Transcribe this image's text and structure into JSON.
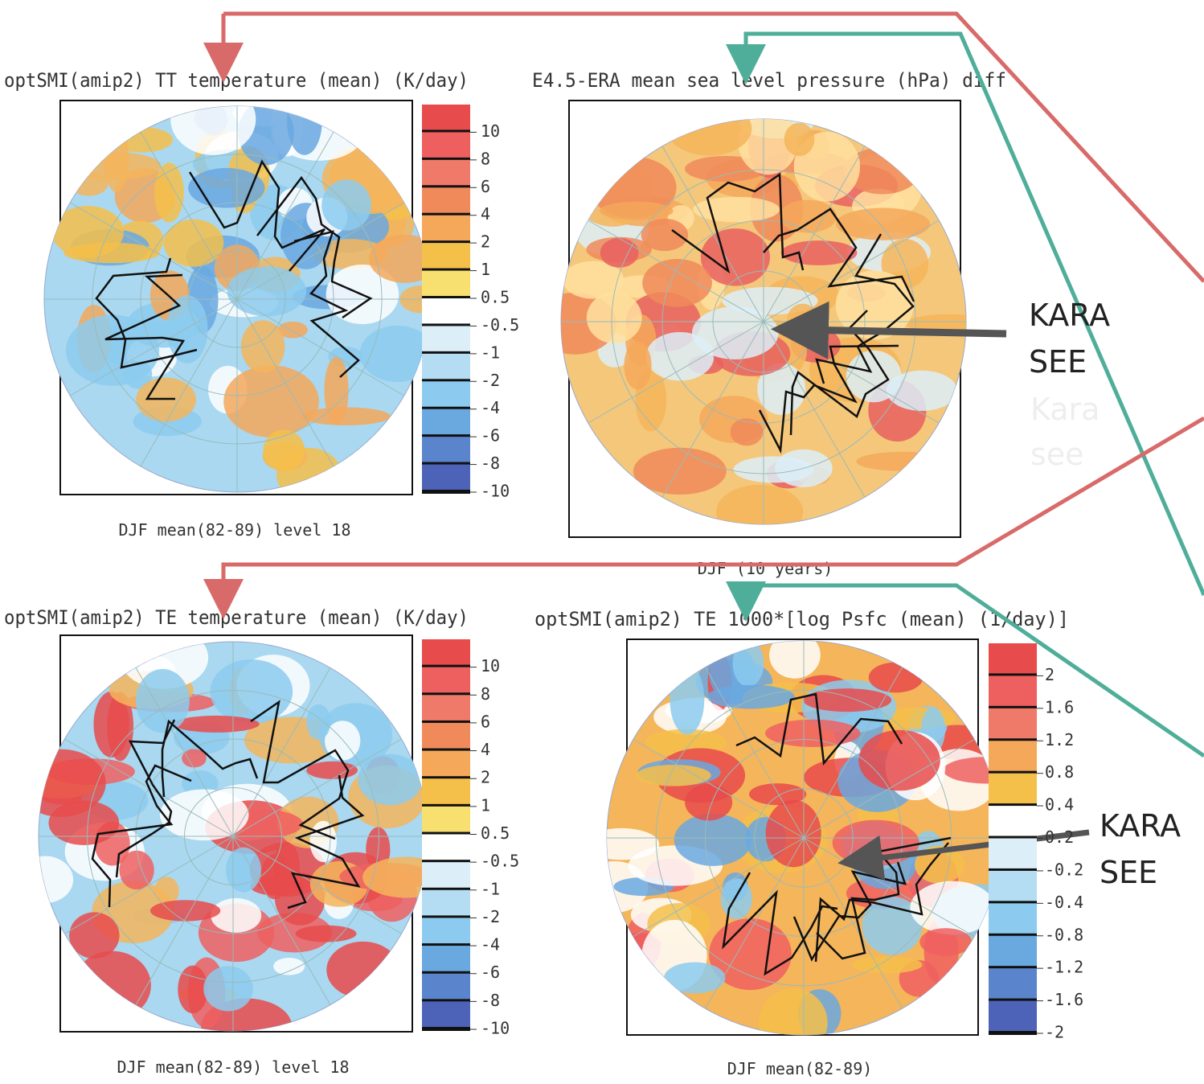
{
  "panels": [
    {
      "title": "optSMI(amip2) TT temperature (mean) (K/day)",
      "caption": "DJF mean(82-89) level 18",
      "colorbar_labels": [
        "10",
        "8",
        "6",
        "4",
        "2",
        "1",
        "0.5",
        "-0.5",
        "-1",
        "-2",
        "-4",
        "-6",
        "-8",
        "-10"
      ],
      "colorbar_colors": [
        "#e84b4b",
        "#ee6060",
        "#f07a6a",
        "#f08a5a",
        "#f5a85a",
        "#f5c04a",
        "#f8e070",
        "#ffffff",
        "#dceef8",
        "#b4dcf2",
        "#8ccbef",
        "#6aa8e0",
        "#5a84cc",
        "#4d63b8"
      ]
    },
    {
      "title": "E4.5-ERA mean sea level pressure (hPa) diff",
      "caption": "DJF (10 years)"
    },
    {
      "title": "optSMI(amip2) TE temperature (mean) (K/day)",
      "caption": "DJF mean(82-89) level 18",
      "colorbar_labels": [
        "10",
        "8",
        "6",
        "4",
        "2",
        "1",
        "0.5",
        "-0.5",
        "-1",
        "-2",
        "-4",
        "-6",
        "-8",
        "-10"
      ],
      "colorbar_colors": [
        "#e84b4b",
        "#ee6060",
        "#f07a6a",
        "#f08a5a",
        "#f5a85a",
        "#f5c04a",
        "#f8e070",
        "#ffffff",
        "#dceef8",
        "#b4dcf2",
        "#8ccbef",
        "#6aa8e0",
        "#5a84cc",
        "#4d63b8"
      ]
    },
    {
      "title": "optSMI(amip2) TE 1000*[log Psfc (mean) (1/day)]",
      "caption": "DJF mean(82-89)",
      "colorbar_labels": [
        "2",
        "1.6",
        "1.2",
        "0.8",
        "0.4",
        "0.2",
        "-0.2",
        "-0.4",
        "-0.8",
        "-1.2",
        "-1.6",
        "-2"
      ],
      "colorbar_colors": [
        "#e84b4b",
        "#ee6060",
        "#f07a6a",
        "#f5a85a",
        "#f5c04a",
        "#ffffff",
        "#dceef8",
        "#b4dcf2",
        "#8ccbef",
        "#6aa8e0",
        "#5a84cc",
        "#4d63b8"
      ]
    }
  ],
  "annotations": {
    "upper": [
      "KARA",
      "SEE"
    ],
    "lower": [
      "KARA",
      "SEE"
    ],
    "faint": [
      "Kara",
      "see"
    ]
  }
}
